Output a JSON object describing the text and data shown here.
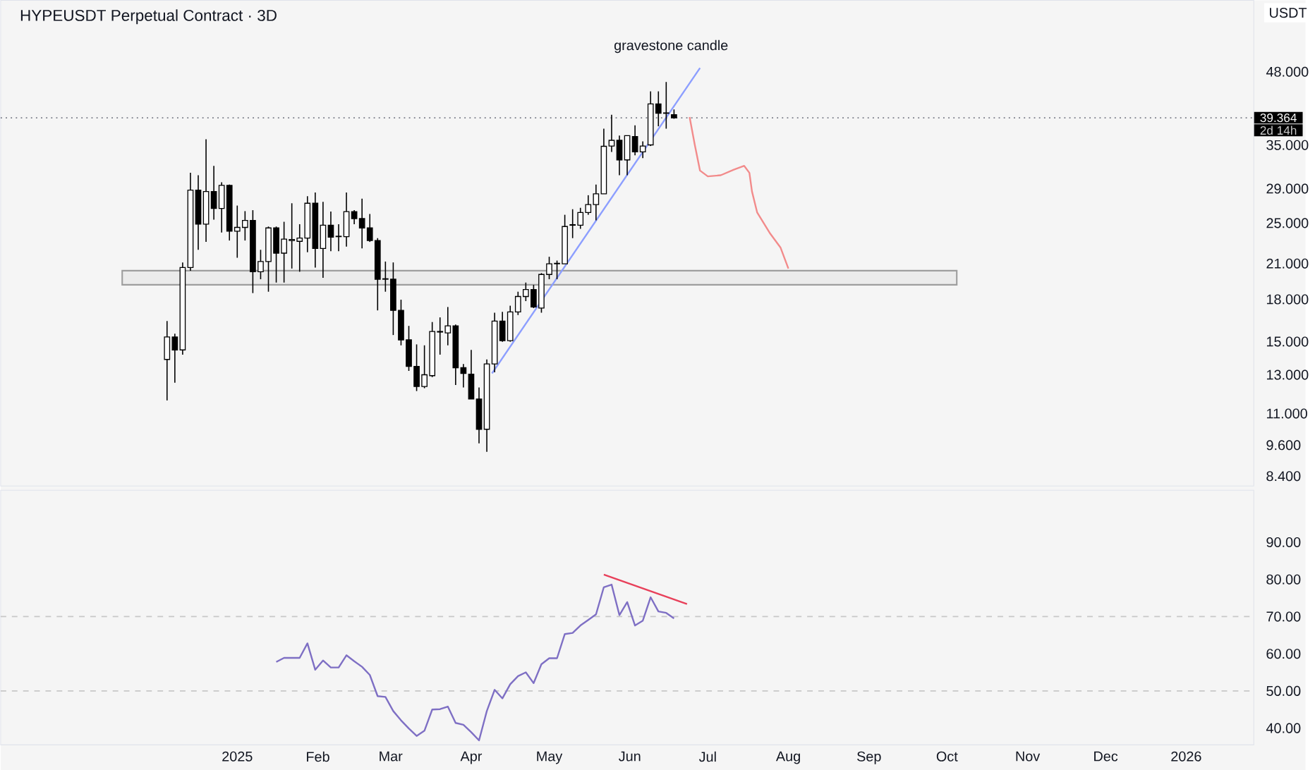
{
  "chart_data": [
    {
      "type": "candlestick",
      "title": "HYPEUSDT Perpetual Contract · 3D",
      "ylabel": "USDT",
      "log": "y",
      "tick_labels": "y",
      "xlim": [
        "2024-10-02",
        "2026-01-27"
      ],
      "ylim": [
        8.05,
        65.3
      ],
      "yticks": [
        {
          "value": 8.4,
          "label": "8.400"
        },
        {
          "value": 9.6,
          "label": "9.600"
        },
        {
          "value": 11,
          "label": "11.000"
        },
        {
          "value": 13,
          "label": "13.000"
        },
        {
          "value": 15,
          "label": "15.000"
        },
        {
          "value": 18,
          "label": "18.000"
        },
        {
          "value": 21,
          "label": "21.000"
        },
        {
          "value": 25,
          "label": "25.000"
        },
        {
          "value": 29,
          "label": "29.000"
        },
        {
          "value": 35,
          "label": "35.000"
        },
        {
          "value": 48,
          "label": "48.000"
        }
      ],
      "x": [
        "2024-12-05",
        "2024-12-08",
        "2024-12-11",
        "2024-12-14",
        "2024-12-17",
        "2024-12-20",
        "2024-12-23",
        "2024-12-26",
        "2024-12-29",
        "2025-01-01",
        "2025-01-04",
        "2025-01-07",
        "2025-01-10",
        "2025-01-13",
        "2025-01-16",
        "2025-01-19",
        "2025-01-22",
        "2025-01-25",
        "2025-01-28",
        "2025-01-31",
        "2025-02-03",
        "2025-02-06",
        "2025-02-09",
        "2025-02-12",
        "2025-02-15",
        "2025-02-18",
        "2025-02-21",
        "2025-02-24",
        "2025-02-27",
        "2025-03-02",
        "2025-03-05",
        "2025-03-08",
        "2025-03-11",
        "2025-03-14",
        "2025-03-17",
        "2025-03-20",
        "2025-03-23",
        "2025-03-26",
        "2025-03-29",
        "2025-04-01",
        "2025-04-04",
        "2025-04-07",
        "2025-04-10",
        "2025-04-13",
        "2025-04-16",
        "2025-04-19",
        "2025-04-22",
        "2025-04-25",
        "2025-04-28",
        "2025-05-01",
        "2025-05-04",
        "2025-05-07",
        "2025-05-10",
        "2025-05-13",
        "2025-05-16",
        "2025-05-19",
        "2025-05-22",
        "2025-05-25",
        "2025-05-28",
        "2025-05-31",
        "2025-06-03",
        "2025-06-06",
        "2025-06-09",
        "2025-06-12",
        "2025-06-15",
        "2025-06-18"
      ],
      "ohlc": [
        [
          13.89,
          16.39,
          11.64,
          15.3
        ],
        [
          15.3,
          15.52,
          12.56,
          14.47
        ],
        [
          14.47,
          21.1,
          14.18,
          20.64
        ],
        [
          20.64,
          31.05,
          20.36,
          28.81
        ],
        [
          28.81,
          30.73,
          22.28,
          24.88
        ],
        [
          24.88,
          35.88,
          23.05,
          28.64
        ],
        [
          28.64,
          32.0,
          25.38,
          26.63
        ],
        [
          26.63,
          29.82,
          24.0,
          29.41
        ],
        [
          29.41,
          29.52,
          23.19,
          24.14
        ],
        [
          24.14,
          26.96,
          21.53,
          24.54
        ],
        [
          24.54,
          26.32,
          23.19,
          25.29
        ],
        [
          25.29,
          26.43,
          18.49,
          20.27
        ],
        [
          20.27,
          22.28,
          19.63,
          21.18
        ],
        [
          21.18,
          24.63,
          18.6,
          24.48
        ],
        [
          24.48,
          24.63,
          19.35,
          21.96
        ],
        [
          21.96,
          25.14,
          19.35,
          23.33
        ],
        [
          23.19,
          27.23,
          20.55,
          23.29
        ],
        [
          23.11,
          24.88,
          20.27,
          23.43
        ],
        [
          23.43,
          28.07,
          22.05,
          27.23
        ],
        [
          27.23,
          28.53,
          20.64,
          22.41
        ],
        [
          22.41,
          27.4,
          19.75,
          24.77
        ],
        [
          24.77,
          26.27,
          22.15,
          23.53
        ],
        [
          23.58,
          24.88,
          22.15,
          23.62
        ],
        [
          23.58,
          28.53,
          22.59,
          26.27
        ],
        [
          26.27,
          26.43,
          24.88,
          25.49
        ],
        [
          25.49,
          27.78,
          22.41,
          24.48
        ],
        [
          24.48,
          26.0,
          23.05,
          23.19
        ],
        [
          23.19,
          23.43,
          17.16,
          19.63
        ],
        [
          19.63,
          21.18,
          18.6,
          19.67
        ],
        [
          19.63,
          21.1,
          15.43,
          17.16
        ],
        [
          17.16,
          17.97,
          14.76,
          15.11
        ],
        [
          15.11,
          16.05,
          13.22,
          13.48
        ],
        [
          13.48,
          14.82,
          12.12,
          12.36
        ],
        [
          12.36,
          14.76,
          12.27,
          13.0
        ],
        [
          12.95,
          16.32,
          12.87,
          15.67
        ],
        [
          15.63,
          16.65,
          14.18,
          15.67
        ],
        [
          15.57,
          17.41,
          14.76,
          16.05
        ],
        [
          16.05,
          16.15,
          12.44,
          13.4
        ],
        [
          13.4,
          13.62,
          12.31,
          13.08
        ],
        [
          13.03,
          14.47,
          11.71,
          11.71
        ],
        [
          11.71,
          12.31,
          9.67,
          10.28
        ],
        [
          10.28,
          13.89,
          9.33,
          13.62
        ],
        [
          13.62,
          16.99,
          13.14,
          16.39
        ],
        [
          16.39,
          17.05,
          14.99,
          15.06
        ],
        [
          15.06,
          17.51,
          14.99,
          17.05
        ],
        [
          17.05,
          18.6,
          16.82,
          18.22
        ],
        [
          18.22,
          19.35,
          17.86,
          18.77
        ],
        [
          18.77,
          19.16,
          17.33,
          17.41
        ],
        [
          17.33,
          20.15,
          16.99,
          20.03
        ],
        [
          20.03,
          21.62,
          19.63,
          20.98
        ],
        [
          20.98,
          21.27,
          19.63,
          21.02
        ],
        [
          20.98,
          25.91,
          20.98,
          24.63
        ],
        [
          24.77,
          26.54,
          23.43,
          24.83
        ],
        [
          24.77,
          26.7,
          24.39,
          26.16
        ],
        [
          26.16,
          28.19,
          25.91,
          27.07
        ],
        [
          27.07,
          29.52,
          25.29,
          28.36
        ],
        [
          28.36,
          37.56,
          28.36,
          34.81
        ],
        [
          34.85,
          39.89,
          33.98,
          35.72
        ],
        [
          35.72,
          36.45,
          30.73,
          32.83
        ],
        [
          32.83,
          36.45,
          30.73,
          36.45
        ],
        [
          36.31,
          38.11,
          33.49,
          33.98
        ],
        [
          33.98,
          35.57,
          33.09,
          34.85
        ],
        [
          35.02,
          44.11,
          34.85,
          41.79
        ],
        [
          41.79,
          44.11,
          37.95,
          40.13
        ],
        [
          40.13,
          45.93,
          37.56,
          40.2
        ],
        [
          39.89,
          40.8,
          39.2,
          39.364
        ]
      ],
      "series": [
        {
          "type": "line",
          "color": "#8c9eff",
          "x": [
            "2025-04-09",
            "2025-06-28"
          ],
          "values": [
            13.08,
            48.8
          ]
        },
        {
          "type": "line",
          "color": "#f28b8b",
          "x": [
            "2025-06-24",
            "2025-06-26",
            "2025-06-28",
            "2025-07-01",
            "2025-07-06",
            "2025-07-11",
            "2025-07-15",
            "2025-07-17",
            "2025-07-18",
            "2025-07-20",
            "2025-07-25",
            "2025-07-29",
            "2025-08-01"
          ],
          "values": [
            39.5,
            35.02,
            31.35,
            30.58,
            30.73,
            31.48,
            32.0,
            31.05,
            28.64,
            26.16,
            23.89,
            22.48,
            20.55
          ]
        }
      ],
      "ref_lines": [
        {
          "axis": "y",
          "value": 39.364,
          "label": "39.364",
          "line_style": "dotted",
          "color": "#787b86"
        }
      ],
      "bands": [
        {
          "axis": "y",
          "from": 19.16,
          "to": 20.36,
          "color": "#9e9e9e"
        }
      ],
      "annotations": [
        "gravestone candle",
        "2d 14h"
      ]
    },
    {
      "type": "line",
      "xlim": [
        "2024-10-02",
        "2026-01-27"
      ],
      "ylim": [
        35.5,
        104
      ],
      "xticks": [
        {
          "value": "2025-01-01",
          "label": "2025"
        },
        {
          "value": "2025-02-01",
          "label": "Feb"
        },
        {
          "value": "2025-03-01",
          "label": "Mar"
        },
        {
          "value": "2025-04-01",
          "label": "Apr"
        },
        {
          "value": "2025-05-01",
          "label": "May"
        },
        {
          "value": "2025-06-01",
          "label": "Jun"
        },
        {
          "value": "2025-07-01",
          "label": "Jul"
        },
        {
          "value": "2025-08-01",
          "label": "Aug"
        },
        {
          "value": "2025-09-01",
          "label": "Sep"
        },
        {
          "value": "2025-10-01",
          "label": "Oct"
        },
        {
          "value": "2025-11-01",
          "label": "Nov"
        },
        {
          "value": "2025-12-01",
          "label": "Dec"
        },
        {
          "value": "2026-01-01",
          "label": "2026"
        }
      ],
      "yticks": [
        {
          "value": 40,
          "label": "40.00"
        },
        {
          "value": 50,
          "label": "50.00"
        },
        {
          "value": 60,
          "label": "60.00"
        },
        {
          "value": 70,
          "label": "70.00"
        },
        {
          "value": 80,
          "label": "80.00"
        },
        {
          "value": 90,
          "label": "90.00"
        }
      ],
      "series": [
        {
          "color": "#7e6fc4",
          "x": [
            "2025-01-16",
            "2025-01-19",
            "2025-01-22",
            "2025-01-25",
            "2025-01-28",
            "2025-01-31",
            "2025-02-03",
            "2025-02-06",
            "2025-02-09",
            "2025-02-12",
            "2025-02-15",
            "2025-02-18",
            "2025-02-21",
            "2025-02-24",
            "2025-02-27",
            "2025-03-02",
            "2025-03-05",
            "2025-03-08",
            "2025-03-11",
            "2025-03-14",
            "2025-03-17",
            "2025-03-20",
            "2025-03-23",
            "2025-03-26",
            "2025-03-29",
            "2025-04-01",
            "2025-04-04",
            "2025-04-07",
            "2025-04-10",
            "2025-04-13",
            "2025-04-16",
            "2025-04-19",
            "2025-04-22",
            "2025-04-25",
            "2025-04-28",
            "2025-05-01",
            "2025-05-04",
            "2025-05-07",
            "2025-05-10",
            "2025-05-13",
            "2025-05-16",
            "2025-05-19",
            "2025-05-22",
            "2025-05-25",
            "2025-05-28",
            "2025-05-31",
            "2025-06-03",
            "2025-06-06",
            "2025-06-09",
            "2025-06-12",
            "2025-06-15",
            "2025-06-18"
          ],
          "values": [
            57.8,
            58.9,
            58.9,
            58.9,
            62.8,
            55.7,
            58.2,
            56.3,
            56.3,
            59.6,
            58.0,
            56.5,
            54.3,
            48.6,
            48.4,
            44.6,
            42.1,
            39.9,
            37.9,
            39.3,
            45.0,
            45.1,
            45.8,
            41.4,
            40.9,
            38.9,
            36.7,
            44.6,
            50.3,
            48.0,
            51.8,
            54.0,
            55.0,
            52.1,
            57.2,
            58.8,
            58.8,
            65.3,
            65.6,
            67.6,
            69.1,
            70.6,
            77.9,
            78.6,
            70.4,
            73.9,
            67.6,
            68.9,
            75.2,
            71.4,
            71.0,
            69.5
          ]
        },
        {
          "color": "#e8405a",
          "x": [
            "2025-05-22",
            "2025-06-23"
          ],
          "values": [
            81.3,
            73.4
          ]
        }
      ],
      "ref_lines": [
        {
          "axis": "y",
          "value": 70,
          "line_style": "dashed",
          "color": "#c8c8c8"
        },
        {
          "axis": "y",
          "value": 50,
          "line_style": "dashed",
          "color": "#c8c8c8"
        }
      ]
    }
  ]
}
